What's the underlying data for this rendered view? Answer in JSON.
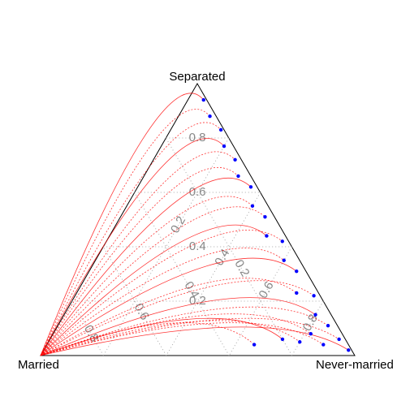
{
  "chart_data": {
    "type": "ternary",
    "axes": [
      "Married",
      "Never-married",
      "Separated"
    ],
    "ticks": [
      [
        0.2,
        0.4,
        0.6,
        0.8
      ],
      [
        0.2,
        0.4,
        0.6,
        0.8
      ],
      [
        0.2,
        0.4,
        0.6,
        0.8
      ]
    ],
    "grid": true,
    "grid_color": "#aaaaaa",
    "curve_color": "#ff0000",
    "series": [
      {
        "color": "#0000ff",
        "married": [
          0.01,
          0.02,
          0.01,
          0.03,
          0.02,
          0.04,
          0.02,
          0.05,
          0.03,
          0.06,
          0.02,
          0.05,
          0.03,
          0.07,
          0.02,
          0.05,
          0.03,
          0.1,
          0.2,
          0.3,
          0.02,
          0.01,
          0.08,
          0.15
        ],
        "never_married": [
          0.05,
          0.1,
          0.16,
          0.2,
          0.26,
          0.3,
          0.36,
          0.4,
          0.46,
          0.5,
          0.56,
          0.6,
          0.66,
          0.7,
          0.76,
          0.8,
          0.86,
          0.82,
          0.74,
          0.66,
          0.92,
          0.97,
          0.88,
          0.8
        ],
        "separated": [
          0.94,
          0.88,
          0.83,
          0.77,
          0.72,
          0.66,
          0.62,
          0.55,
          0.51,
          0.44,
          0.42,
          0.35,
          0.31,
          0.23,
          0.22,
          0.15,
          0.11,
          0.08,
          0.06,
          0.04,
          0.06,
          0.02,
          0.04,
          0.05
        ]
      }
    ]
  }
}
